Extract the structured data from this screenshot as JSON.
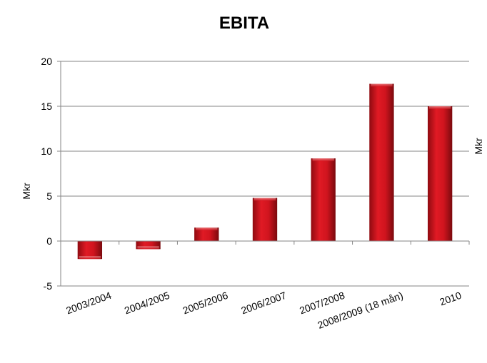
{
  "chart_data": {
    "type": "bar",
    "title": "EBITA",
    "ylabel": "Mkr",
    "y2label": "Mkr",
    "categories": [
      "2003/2004",
      "2004/2005",
      "2005/2006",
      "2006/2007",
      "2007/2008",
      "2008/2009 (18 mån)",
      "2010"
    ],
    "values": [
      -2.0,
      -0.9,
      1.5,
      4.8,
      9.2,
      17.5,
      15.0
    ],
    "ylim": [
      -5,
      20
    ],
    "yticks": [
      "20",
      "15",
      "10",
      "5",
      "0",
      "-5"
    ],
    "grid": true,
    "bar_color": "#d0141e"
  }
}
